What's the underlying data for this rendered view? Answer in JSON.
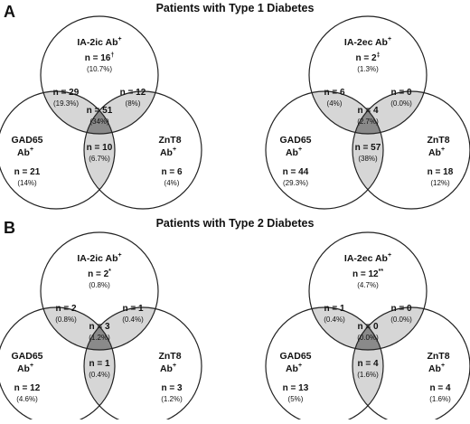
{
  "panels": [
    {
      "letter": "A",
      "title": "Patients with Type 1 Diabetes",
      "diagrams": [
        {
          "sets": {
            "top": [
              "IA-2ic Ab",
              "+"
            ],
            "left": [
              "GAD65",
              "Ab",
              "+"
            ],
            "right": [
              "ZnT8",
              "Ab",
              "+"
            ]
          },
          "regions": {
            "top": {
              "n": "n = 16",
              "mark": "†",
              "pct": "(10.7%)"
            },
            "left": {
              "n": "n = 21",
              "mark": "",
              "pct": "(14%)"
            },
            "right": {
              "n": "n = 6",
              "mark": "",
              "pct": "(4%)"
            },
            "tl": {
              "n": "n = 29",
              "mark": "",
              "pct": "(19.3%)"
            },
            "tr": {
              "n": "n = 12",
              "mark": "",
              "pct": "(8%)"
            },
            "lr": {
              "n": "n = 10",
              "mark": "",
              "pct": "(6.7%)"
            },
            "all": {
              "n": "n = 51",
              "mark": "",
              "pct": "(34%)"
            }
          }
        },
        {
          "sets": {
            "top": [
              "IA-2ec Ab",
              "+"
            ],
            "left": [
              "GAD65",
              "Ab",
              "+"
            ],
            "right": [
              "ZnT8",
              "Ab",
              "+"
            ]
          },
          "regions": {
            "top": {
              "n": "n = 2",
              "mark": "‡",
              "pct": "(1.3%)"
            },
            "left": {
              "n": "n = 44",
              "mark": "",
              "pct": "(29.3%)"
            },
            "right": {
              "n": "n = 18",
              "mark": "",
              "pct": "(12%)"
            },
            "tl": {
              "n": "n = 6",
              "mark": "",
              "pct": "(4%)"
            },
            "tr": {
              "n": "n = 0",
              "mark": "",
              "pct": "(0.0%)"
            },
            "lr": {
              "n": "n = 57",
              "mark": "",
              "pct": "(38%)"
            },
            "all": {
              "n": "n = 4",
              "mark": "",
              "pct": "(2.7%)"
            }
          }
        }
      ]
    },
    {
      "letter": "B",
      "title": "Patients with Type 2 Diabetes",
      "diagrams": [
        {
          "sets": {
            "top": [
              "IA-2ic Ab",
              "+"
            ],
            "left": [
              "GAD65",
              "Ab",
              "+"
            ],
            "right": [
              "ZnT8",
              "Ab",
              "+"
            ]
          },
          "regions": {
            "top": {
              "n": "n = 2",
              "mark": "*",
              "pct": "(0.8%)"
            },
            "left": {
              "n": "n = 12",
              "mark": "",
              "pct": "(4.6%)"
            },
            "right": {
              "n": "n = 3",
              "mark": "",
              "pct": "(1.2%)"
            },
            "tl": {
              "n": "n = 2",
              "mark": "",
              "pct": "(0.8%)"
            },
            "tr": {
              "n": "n = 1",
              "mark": "",
              "pct": "(0.4%)"
            },
            "lr": {
              "n": "n = 1",
              "mark": "",
              "pct": "(0.4%)"
            },
            "all": {
              "n": "n = 3",
              "mark": "",
              "pct": "(1.2%)"
            }
          }
        },
        {
          "sets": {
            "top": [
              "IA-2ec Ab",
              "+"
            ],
            "left": [
              "GAD65",
              "Ab",
              "+"
            ],
            "right": [
              "ZnT8",
              "Ab",
              "+"
            ]
          },
          "regions": {
            "top": {
              "n": "n = 12",
              "mark": "**",
              "pct": "(4.7%)"
            },
            "left": {
              "n": "n = 13",
              "mark": "",
              "pct": "(5%)"
            },
            "right": {
              "n": "n = 4",
              "mark": "",
              "pct": "(1.6%)"
            },
            "tl": {
              "n": "n = 1",
              "mark": "",
              "pct": "(0.4%)"
            },
            "tr": {
              "n": "n = 0",
              "mark": "",
              "pct": "(0.0%)"
            },
            "lr": {
              "n": "n = 4",
              "mark": "",
              "pct": "(1.6%)"
            },
            "all": {
              "n": "n = 0",
              "mark": "",
              "pct": "(0.0%)"
            }
          }
        }
      ]
    }
  ],
  "colors": {
    "single": "#ffffff",
    "pair": "#d6d6d6",
    "triple": "#8a8a8a",
    "stroke": "#222222"
  }
}
